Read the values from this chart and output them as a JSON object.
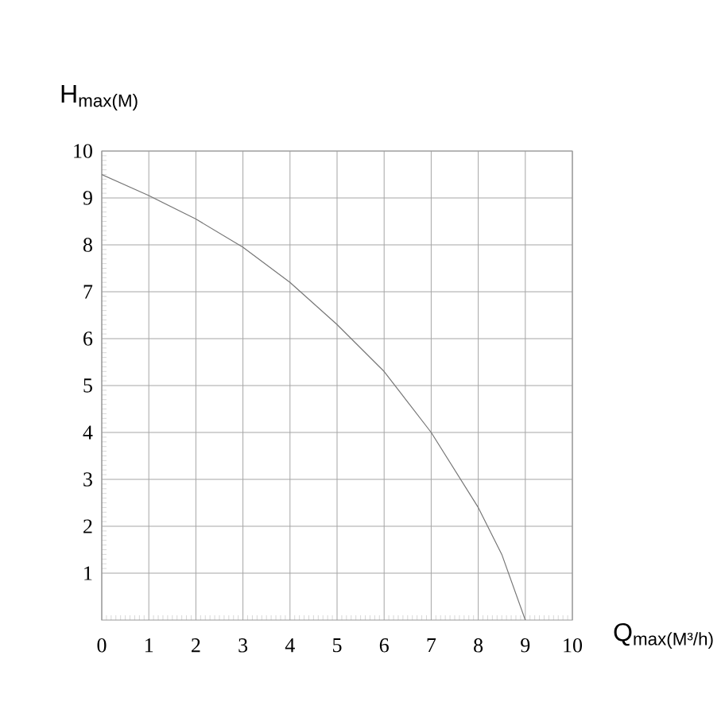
{
  "chart_data": {
    "type": "line",
    "xlabel": "Q$_{max(M³/h)}$",
    "ylabel": "H$_{max(M)}$",
    "series": [
      {
        "color": "#777777",
        "x": [
          0,
          1,
          2,
          3,
          4,
          5,
          6,
          7,
          8,
          8.5,
          9
        ],
        "values": [
          9.5,
          9.05,
          8.55,
          7.95,
          7.2,
          6.3,
          5.3,
          4.0,
          2.4,
          1.4,
          0
        ]
      }
    ],
    "xlim": [
      0,
      10
    ],
    "ylim": [
      0,
      10
    ],
    "xticks": [
      0,
      1,
      2,
      3,
      4,
      5,
      6,
      7,
      8,
      9,
      10
    ],
    "yticks": [
      1,
      2,
      3,
      4,
      5,
      6,
      7,
      8,
      9,
      10
    ],
    "grid": true,
    "marker": "none",
    "line_style": "solid"
  }
}
